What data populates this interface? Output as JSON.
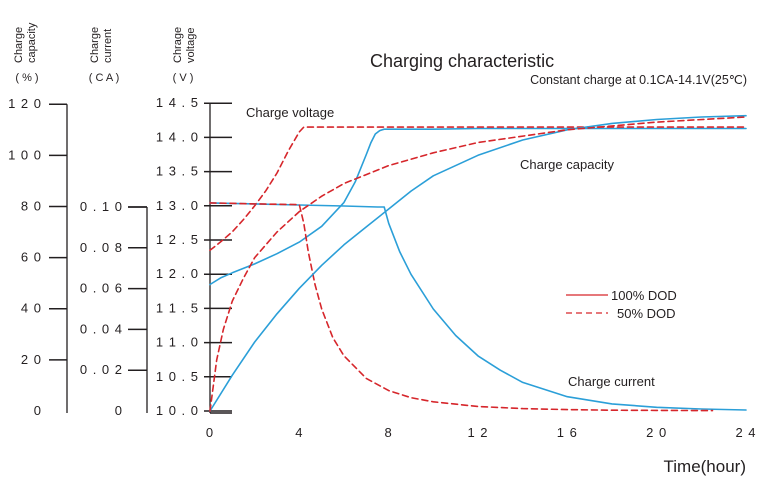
{
  "chart_data": {
    "type": "line",
    "title": "Charging characteristic",
    "subtitle": "Constant charge at 0.1CA-14.1V(25℃)",
    "xlabel": "Time(hour)",
    "xlim": [
      0,
      24
    ],
    "x_ticks": [
      "0",
      "4",
      "8",
      "1 2",
      "1 6",
      "2 0",
      "2 4"
    ],
    "axes": [
      {
        "key": "capacity",
        "label_lines": [
          "Charge",
          "capacity"
        ],
        "unit": "( % )",
        "range": [
          0,
          120
        ],
        "ticks": [
          "0",
          "2 0",
          "4 0",
          "6 0",
          "8 0",
          "1 0 0",
          "1 2 0"
        ]
      },
      {
        "key": "current",
        "label_lines": [
          "Charge",
          "current"
        ],
        "unit": "( C A )",
        "range": [
          0,
          0.12
        ],
        "ticks": [
          "0",
          "0 . 0 2",
          "0 . 0 4",
          "0 . 0 6",
          "0 . 0 8",
          "0 . 1 0"
        ]
      },
      {
        "key": "voltage",
        "label_lines": [
          "Chrage",
          "voltage"
        ],
        "unit": "( V )",
        "range": [
          10.0,
          14.5
        ],
        "ticks": [
          "1 0 . 0",
          "1 0 . 5",
          "1 1 . 0",
          "1 1 . 5",
          "1 2 . 0",
          "1 2 . 5",
          "1 3 . 0",
          "1 3 . 5",
          "1 4 . 0",
          "1 4 . 5"
        ]
      }
    ],
    "annotations": [
      {
        "key": "voltage",
        "text": "Charge voltage"
      },
      {
        "key": "capacity",
        "text": "Charge  capacity"
      },
      {
        "key": "current",
        "text": "Charge  current"
      }
    ],
    "legend": {
      "position": "right-middle",
      "items": [
        {
          "label": "100% DOD",
          "style": "solid"
        },
        {
          "label": "50% DOD",
          "style": "dashed"
        }
      ]
    },
    "colors": {
      "100% DOD": "#2b9fd8",
      "50% DOD": "#d6262b",
      "legend_swatch": "#d6262b"
    },
    "series": [
      {
        "dod": "100%",
        "axis": "voltage",
        "style": "solid",
        "x": [
          0,
          0.5,
          1,
          2,
          3,
          4,
          5,
          6,
          6.5,
          7,
          7.2,
          7.4,
          7.6,
          7.8,
          8,
          10,
          12,
          16,
          20,
          24
        ],
        "y": [
          11.85,
          11.95,
          12.02,
          12.15,
          12.3,
          12.47,
          12.7,
          13.05,
          13.35,
          13.75,
          13.92,
          14.05,
          14.1,
          14.12,
          14.12,
          14.12,
          14.13,
          14.13,
          14.13,
          14.13
        ]
      },
      {
        "dod": "50%",
        "axis": "voltage",
        "style": "dashed",
        "x": [
          0,
          0.5,
          1,
          1.5,
          2,
          2.5,
          3,
          3.5,
          4,
          4.2,
          4.5,
          6,
          8,
          12,
          16,
          20,
          24
        ],
        "y": [
          12.35,
          12.48,
          12.62,
          12.8,
          13.0,
          13.22,
          13.48,
          13.8,
          14.08,
          14.15,
          14.15,
          14.15,
          14.15,
          14.15,
          14.15,
          14.15,
          14.15
        ]
      },
      {
        "dod": "100%",
        "axis": "current",
        "style": "solid",
        "x": [
          0,
          2,
          4,
          6,
          7.5,
          7.8,
          8,
          8.5,
          9,
          10,
          11,
          12,
          13,
          14,
          16,
          18,
          20,
          22,
          24
        ],
        "y": [
          0.102,
          0.1015,
          0.101,
          0.1005,
          0.1,
          0.1,
          0.092,
          0.078,
          0.067,
          0.05,
          0.037,
          0.027,
          0.02,
          0.014,
          0.007,
          0.0035,
          0.0018,
          0.001,
          0.0005
        ]
      },
      {
        "dod": "50%",
        "axis": "current",
        "style": "dashed",
        "x": [
          0,
          2,
          4,
          4.2,
          4.4,
          4.7,
          5,
          5.5,
          6,
          7,
          8,
          9,
          10,
          12,
          14,
          16,
          18,
          20,
          22.5
        ],
        "y": [
          0.102,
          0.1015,
          0.1012,
          0.092,
          0.078,
          0.062,
          0.05,
          0.036,
          0.027,
          0.016,
          0.01,
          0.0065,
          0.0045,
          0.0022,
          0.0012,
          0.0007,
          0.0004,
          0.0003,
          0.0002
        ]
      },
      {
        "dod": "100%",
        "axis": "capacity",
        "style": "solid",
        "x": [
          0,
          1,
          2,
          3,
          4,
          5,
          6,
          7,
          8,
          9,
          10,
          12,
          14,
          16,
          18,
          20,
          22,
          24
        ],
        "y": [
          0,
          14,
          27,
          38,
          48,
          57,
          65,
          72,
          79,
          86,
          92,
          100,
          106,
          110,
          112.5,
          114,
          115,
          115.5
        ]
      },
      {
        "dod": "50%",
        "axis": "capacity",
        "style": "dashed",
        "x": [
          0,
          0.3,
          0.6,
          1,
          1.5,
          2,
          3,
          4,
          5,
          6,
          8,
          10,
          12,
          16,
          20,
          24
        ],
        "y": [
          0,
          20,
          32,
          43,
          52,
          60,
          70,
          78,
          84,
          89,
          96,
          101,
          105,
          110,
          113,
          115
        ]
      }
    ]
  }
}
